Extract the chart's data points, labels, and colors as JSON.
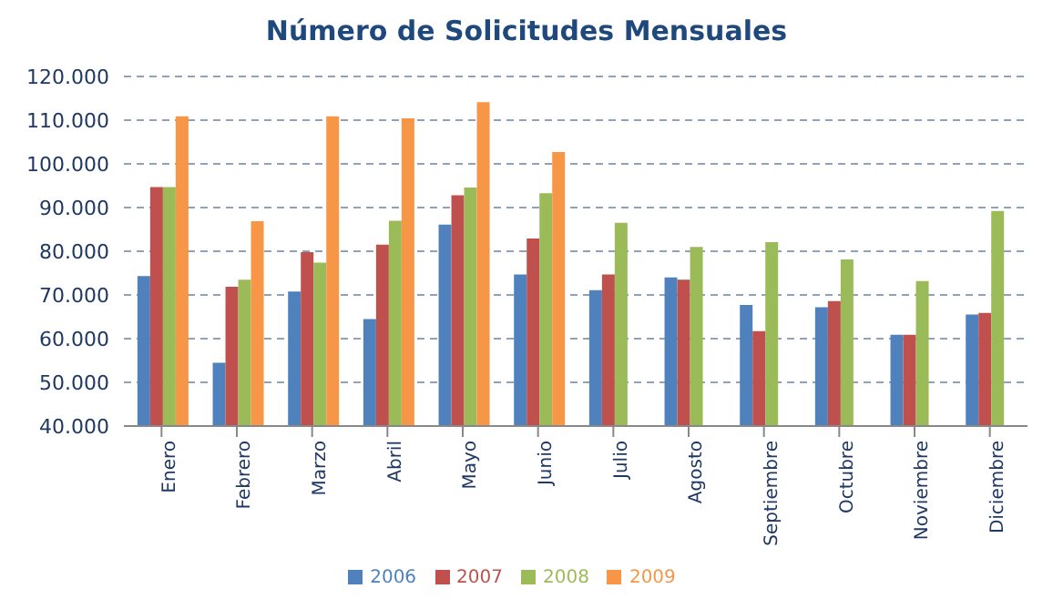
{
  "chart_data": {
    "type": "bar",
    "title": "Número de Solicitudes Mensuales",
    "categories": [
      "Enero",
      "Febrero",
      "Marzo",
      "Abril",
      "Mayo",
      "Junio",
      "Julio",
      "Agosto",
      "Septiembre",
      "Octubre",
      "Noviembre",
      "Diciembre"
    ],
    "series": [
      {
        "name": "2006",
        "color": "#4f81bd",
        "values": [
          74300,
          54500,
          70800,
          64500,
          86100,
          74700,
          71100,
          74000,
          67700,
          67200,
          60900,
          65500
        ]
      },
      {
        "name": "2007",
        "color": "#c0504d",
        "values": [
          94700,
          71900,
          79800,
          81500,
          92800,
          82900,
          74700,
          73500,
          61700,
          68600,
          60900,
          65900
        ]
      },
      {
        "name": "2008",
        "color": "#9bbb59",
        "values": [
          94700,
          73500,
          77400,
          87000,
          94600,
          93300,
          86500,
          81000,
          82100,
          78100,
          73200,
          89200
        ]
      },
      {
        "name": "2009",
        "color": "#f79646",
        "values": [
          110900,
          86900,
          110900,
          110400,
          114100,
          102700,
          null,
          null,
          null,
          null,
          null,
          null
        ]
      }
    ],
    "ylim": [
      40000,
      120000
    ],
    "yticks": [
      {
        "value": 40000,
        "label": "40.000"
      },
      {
        "value": 50000,
        "label": "50.000"
      },
      {
        "value": 60000,
        "label": "60.000"
      },
      {
        "value": 70000,
        "label": "70.000"
      },
      {
        "value": 80000,
        "label": "80.000"
      },
      {
        "value": 90000,
        "label": "90.000"
      },
      {
        "value": 100000,
        "label": "100.000"
      },
      {
        "value": 110000,
        "label": "110.000"
      },
      {
        "value": 120000,
        "label": "120.000"
      }
    ],
    "grid": "y",
    "legend": "bottom"
  }
}
